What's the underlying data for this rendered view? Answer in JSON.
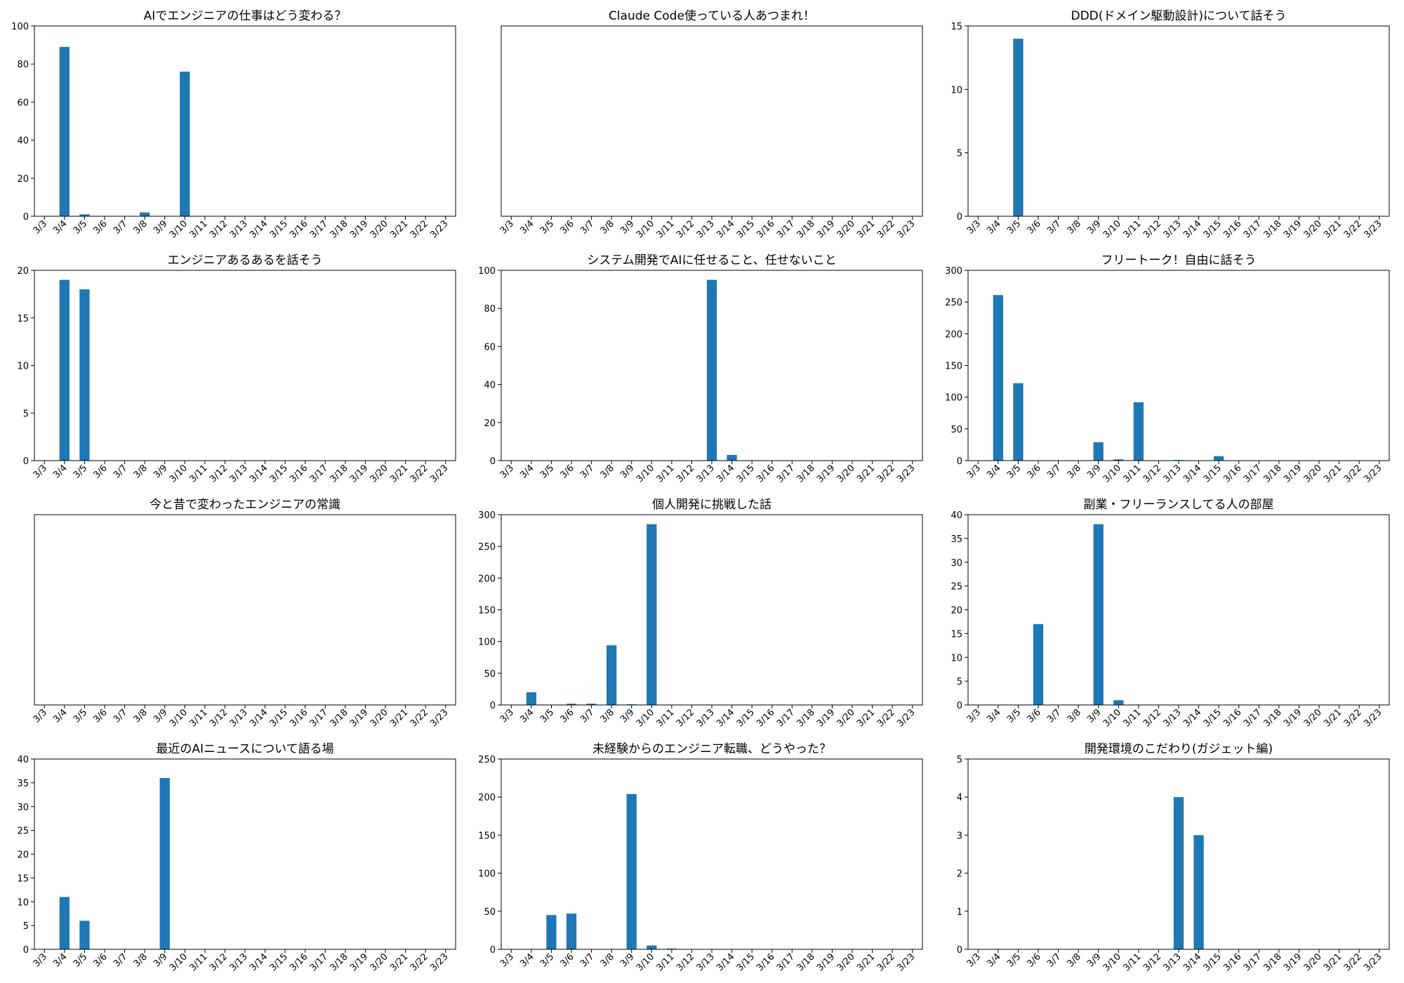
{
  "bar_color": "#1f77b4",
  "chart_data": [
    {
      "type": "bar",
      "title": "AIでエンジニアの仕事はどう変わる？",
      "categories": [
        "3/3",
        "3/4",
        "3/5",
        "3/6",
        "3/7",
        "3/8",
        "3/9",
        "3/10",
        "3/11",
        "3/12",
        "3/13",
        "3/14",
        "3/15",
        "3/16",
        "3/17",
        "3/18",
        "3/19",
        "3/20",
        "3/21",
        "3/22",
        "3/23"
      ],
      "values": [
        0,
        89,
        1,
        0,
        0,
        2,
        0,
        76,
        0,
        0,
        0,
        0,
        0,
        0,
        0,
        0,
        0,
        0,
        0,
        0,
        0
      ],
      "ylim": [
        0,
        100
      ],
      "yticks": [
        0,
        20,
        40,
        60,
        80,
        100
      ]
    },
    {
      "type": "bar",
      "title": "Claude Code使っている人あつまれ！",
      "categories": [
        "3/3",
        "3/4",
        "3/5",
        "3/6",
        "3/7",
        "3/8",
        "3/9",
        "3/10",
        "3/11",
        "3/12",
        "3/13",
        "3/14",
        "3/15",
        "3/16",
        "3/17",
        "3/18",
        "3/19",
        "3/20",
        "3/21",
        "3/22",
        "3/23"
      ],
      "values": [
        0,
        0,
        0,
        0,
        0,
        0,
        0,
        0,
        0,
        0,
        0,
        0,
        0,
        0,
        0,
        0,
        0,
        0,
        0,
        0,
        0
      ],
      "ylim": [
        0,
        1
      ],
      "yticks": []
    },
    {
      "type": "bar",
      "title": "DDD(ドメイン駆動設計)について話そう",
      "categories": [
        "3/3",
        "3/4",
        "3/5",
        "3/6",
        "3/7",
        "3/8",
        "3/9",
        "3/10",
        "3/11",
        "3/12",
        "3/13",
        "3/14",
        "3/15",
        "3/16",
        "3/17",
        "3/18",
        "3/19",
        "3/20",
        "3/21",
        "3/22",
        "3/23"
      ],
      "values": [
        0,
        0,
        14,
        0,
        0,
        0,
        0,
        0,
        0,
        0,
        0,
        0,
        0,
        0,
        0,
        0,
        0,
        0,
        0,
        0,
        0
      ],
      "ylim": [
        0,
        15
      ],
      "yticks": [
        0,
        5,
        10,
        15
      ]
    },
    {
      "type": "bar",
      "title": "エンジニアあるあるを話そう",
      "categories": [
        "3/3",
        "3/4",
        "3/5",
        "3/6",
        "3/7",
        "3/8",
        "3/9",
        "3/10",
        "3/11",
        "3/12",
        "3/13",
        "3/14",
        "3/15",
        "3/16",
        "3/17",
        "3/18",
        "3/19",
        "3/20",
        "3/21",
        "3/22",
        "3/23"
      ],
      "values": [
        0,
        19,
        18,
        0,
        0,
        0,
        0,
        0,
        0,
        0,
        0,
        0,
        0,
        0,
        0,
        0,
        0,
        0,
        0,
        0,
        0
      ],
      "ylim": [
        0,
        20
      ],
      "yticks": [
        0,
        5,
        10,
        15,
        20
      ]
    },
    {
      "type": "bar",
      "title": "システム開発でAIに任せること、任せないこと",
      "categories": [
        "3/3",
        "3/4",
        "3/5",
        "3/6",
        "3/7",
        "3/8",
        "3/9",
        "3/10",
        "3/11",
        "3/12",
        "3/13",
        "3/14",
        "3/15",
        "3/16",
        "3/17",
        "3/18",
        "3/19",
        "3/20",
        "3/21",
        "3/22",
        "3/23"
      ],
      "values": [
        0,
        0,
        0,
        0,
        0,
        0,
        0,
        0,
        0,
        0,
        95,
        3,
        0,
        0,
        0,
        0,
        0,
        0,
        0,
        0,
        0
      ],
      "ylim": [
        0,
        100
      ],
      "yticks": [
        0,
        20,
        40,
        60,
        80,
        100
      ]
    },
    {
      "type": "bar",
      "title": "フリートーク！自由に話そう",
      "categories": [
        "3/3",
        "3/4",
        "3/5",
        "3/6",
        "3/7",
        "3/8",
        "3/9",
        "3/10",
        "3/11",
        "3/12",
        "3/13",
        "3/14",
        "3/15",
        "3/16",
        "3/17",
        "3/18",
        "3/19",
        "3/20",
        "3/21",
        "3/22",
        "3/23"
      ],
      "values": [
        0,
        261,
        122,
        0,
        0,
        0,
        29,
        2,
        92,
        0,
        1,
        0,
        7,
        0,
        0,
        0,
        0,
        0,
        0,
        0,
        0
      ],
      "ylim": [
        0,
        300
      ],
      "yticks": [
        0,
        50,
        100,
        150,
        200,
        250,
        300
      ]
    },
    {
      "type": "bar",
      "title": "今と昔で変わったエンジニアの常識",
      "categories": [
        "3/3",
        "3/4",
        "3/5",
        "3/6",
        "3/7",
        "3/8",
        "3/9",
        "3/10",
        "3/11",
        "3/12",
        "3/13",
        "3/14",
        "3/15",
        "3/16",
        "3/17",
        "3/18",
        "3/19",
        "3/20",
        "3/21",
        "3/22",
        "3/23"
      ],
      "values": [
        0,
        0,
        0,
        0,
        0,
        0,
        0,
        0,
        0,
        0,
        0,
        0,
        0,
        0,
        0,
        0,
        0,
        0,
        0,
        0,
        0
      ],
      "ylim": [
        0,
        1
      ],
      "yticks": []
    },
    {
      "type": "bar",
      "title": "個人開発に挑戦した話",
      "categories": [
        "3/3",
        "3/4",
        "3/5",
        "3/6",
        "3/7",
        "3/8",
        "3/9",
        "3/10",
        "3/11",
        "3/12",
        "3/13",
        "3/14",
        "3/15",
        "3/16",
        "3/17",
        "3/18",
        "3/19",
        "3/20",
        "3/21",
        "3/22",
        "3/23"
      ],
      "values": [
        0,
        20,
        0,
        2,
        2,
        94,
        1,
        285,
        0,
        0,
        0,
        0,
        0,
        0,
        0,
        0,
        0,
        0,
        0,
        0,
        0
      ],
      "ylim": [
        0,
        300
      ],
      "yticks": [
        0,
        50,
        100,
        150,
        200,
        250,
        300
      ]
    },
    {
      "type": "bar",
      "title": "副業・フリーランスしてる人の部屋",
      "categories": [
        "3/3",
        "3/4",
        "3/5",
        "3/6",
        "3/7",
        "3/8",
        "3/9",
        "3/10",
        "3/11",
        "3/12",
        "3/13",
        "3/14",
        "3/15",
        "3/16",
        "3/17",
        "3/18",
        "3/19",
        "3/20",
        "3/21",
        "3/22",
        "3/23"
      ],
      "values": [
        0,
        0,
        0,
        17,
        0,
        0,
        38,
        1,
        0,
        0,
        0,
        0,
        0,
        0,
        0,
        0,
        0,
        0,
        0,
        0,
        0
      ],
      "ylim": [
        0,
        40
      ],
      "yticks": [
        0,
        5,
        10,
        15,
        20,
        25,
        30,
        35,
        40
      ]
    },
    {
      "type": "bar",
      "title": "最近のAIニュースについて語る場",
      "categories": [
        "3/3",
        "3/4",
        "3/5",
        "3/6",
        "3/7",
        "3/8",
        "3/9",
        "3/10",
        "3/11",
        "3/12",
        "3/13",
        "3/14",
        "3/15",
        "3/16",
        "3/17",
        "3/18",
        "3/19",
        "3/20",
        "3/21",
        "3/22",
        "3/23"
      ],
      "values": [
        0,
        11,
        6,
        0,
        0,
        0,
        36,
        0,
        0,
        0,
        0,
        0,
        0,
        0,
        0,
        0,
        0,
        0,
        0,
        0,
        0
      ],
      "ylim": [
        0,
        40
      ],
      "yticks": [
        0,
        5,
        10,
        15,
        20,
        25,
        30,
        35,
        40
      ]
    },
    {
      "type": "bar",
      "title": "未経験からのエンジニア転職、どうやった？",
      "categories": [
        "3/3",
        "3/4",
        "3/5",
        "3/6",
        "3/7",
        "3/8",
        "3/9",
        "3/10",
        "3/11",
        "3/12",
        "3/13",
        "3/14",
        "3/15",
        "3/16",
        "3/17",
        "3/18",
        "3/19",
        "3/20",
        "3/21",
        "3/22",
        "3/23"
      ],
      "values": [
        0,
        0,
        45,
        47,
        0,
        0,
        204,
        5,
        1,
        0,
        0,
        0,
        0,
        0,
        0,
        0,
        0,
        0,
        0,
        0,
        0
      ],
      "ylim": [
        0,
        250
      ],
      "yticks": [
        0,
        50,
        100,
        150,
        200,
        250
      ]
    },
    {
      "type": "bar",
      "title": "開発環境のこだわり(ガジェット編)",
      "categories": [
        "3/3",
        "3/4",
        "3/5",
        "3/6",
        "3/7",
        "3/8",
        "3/9",
        "3/10",
        "3/11",
        "3/12",
        "3/13",
        "3/14",
        "3/15",
        "3/16",
        "3/17",
        "3/18",
        "3/19",
        "3/20",
        "3/21",
        "3/22",
        "3/23"
      ],
      "values": [
        0,
        0,
        0,
        0,
        0,
        0,
        0,
        0,
        0,
        0,
        4,
        3,
        0,
        0,
        0,
        0,
        0,
        0,
        0,
        0,
        0
      ],
      "ylim": [
        0,
        5
      ],
      "yticks": [
        0,
        1,
        2,
        3,
        4,
        5
      ]
    }
  ]
}
